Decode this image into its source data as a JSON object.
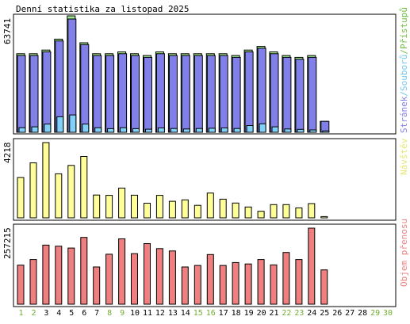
{
  "title": "Denní statistika za listopad 2025",
  "colors": {
    "pages_fill": "#8080e8",
    "files_fill": "#80d0f8",
    "hits_fill": "#a0e890",
    "visits_fill": "#ffff99",
    "traffic_fill": "#f08080",
    "weekday_label": "#000000",
    "weekend_label": "#70b030",
    "legend_hits": "#70c040",
    "legend_files": "#70c8f0",
    "legend_pages": "#8080e8",
    "legend_visits": "#e8e870",
    "legend_traffic": "#f08080"
  },
  "chart_data": [
    {
      "type": "bar",
      "panel": "hits-files-pages",
      "title": "Denní statistika za listopad 2025",
      "ylabel_max": "63741",
      "ylim": [
        0,
        63741
      ],
      "legend": [
        {
          "text": "Přístupů",
          "color_key": "legend_hits"
        },
        {
          "text": "/",
          "color_key": "legend_hits"
        },
        {
          "text": "Souborů",
          "color_key": "legend_files"
        },
        {
          "text": "/",
          "color_key": "legend_files"
        },
        {
          "text": "Stránek",
          "color_key": "legend_pages"
        }
      ],
      "categories": [
        "1",
        "2",
        "3",
        "4",
        "5",
        "6",
        "7",
        "8",
        "9",
        "10",
        "11",
        "12",
        "13",
        "14",
        "15",
        "16",
        "17",
        "18",
        "19",
        "20",
        "21",
        "22",
        "23",
        "24",
        "25",
        "26",
        "27",
        "28",
        "29",
        "30"
      ],
      "series": [
        {
          "name": "Přístupů",
          "color_key": "hits_fill",
          "values": [
            43000,
            43000,
            45000,
            51000,
            63741,
            49000,
            43000,
            43000,
            44000,
            43000,
            42000,
            44000,
            43000,
            43000,
            43000,
            43000,
            43000,
            42000,
            45000,
            47000,
            44000,
            42000,
            41000,
            42000,
            6000,
            0,
            0,
            0,
            0,
            0
          ]
        },
        {
          "name": "Souborů",
          "color_key": "files_fill",
          "values": [
            2500,
            3000,
            4500,
            8500,
            9500,
            4500,
            2500,
            2000,
            2500,
            2000,
            1700,
            2400,
            2100,
            1800,
            2100,
            2200,
            2400,
            2100,
            3700,
            4700,
            3000,
            1800,
            1600,
            1300,
            800,
            0,
            0,
            0,
            0,
            0
          ]
        },
        {
          "name": "Stránek",
          "color_key": "pages_fill",
          "values": [
            42000,
            42000,
            44000,
            50000,
            62000,
            48000,
            42000,
            42000,
            43000,
            42000,
            41000,
            43000,
            42000,
            42000,
            42000,
            42000,
            42000,
            41000,
            44000,
            46000,
            43000,
            41000,
            40000,
            41000,
            6000,
            0,
            0,
            0,
            0,
            0
          ]
        }
      ]
    },
    {
      "type": "bar",
      "panel": "visits",
      "ylabel_max": "4218",
      "ylim": [
        0,
        4218
      ],
      "legend": [
        {
          "text": "Návštěv",
          "color_key": "legend_visits"
        }
      ],
      "categories": [
        "1",
        "2",
        "3",
        "4",
        "5",
        "6",
        "7",
        "8",
        "9",
        "10",
        "11",
        "12",
        "13",
        "14",
        "15",
        "16",
        "17",
        "18",
        "19",
        "20",
        "21",
        "22",
        "23",
        "24",
        "25",
        "26",
        "27",
        "28",
        "29",
        "30"
      ],
      "series": [
        {
          "name": "Návštěv",
          "color_key": "visits_fill",
          "values": [
            2260,
            3080,
            4218,
            2470,
            2940,
            3440,
            1280,
            1260,
            1670,
            1270,
            820,
            1260,
            930,
            1010,
            700,
            1390,
            1050,
            830,
            610,
            370,
            740,
            740,
            560,
            800,
            70,
            0,
            0,
            0,
            0,
            0
          ]
        }
      ]
    },
    {
      "type": "bar",
      "panel": "traffic",
      "ylabel_max": "257215",
      "ylim": [
        0,
        257215
      ],
      "legend": [
        {
          "text": "Objem přenosu",
          "color_key": "legend_traffic"
        }
      ],
      "categories": [
        "1",
        "2",
        "3",
        "4",
        "5",
        "6",
        "7",
        "8",
        "9",
        "10",
        "11",
        "12",
        "13",
        "14",
        "15",
        "16",
        "17",
        "18",
        "19",
        "20",
        "21",
        "22",
        "23",
        "24",
        "25",
        "26",
        "27",
        "28",
        "29",
        "30"
      ],
      "series": [
        {
          "name": "Objem přenosu",
          "color_key": "traffic_fill",
          "values": [
            132000,
            151000,
            200000,
            196000,
            190000,
            226000,
            126000,
            169000,
            221000,
            171000,
            205000,
            188000,
            180000,
            126000,
            131000,
            168000,
            131000,
            141000,
            136000,
            151000,
            133000,
            175000,
            151000,
            257215,
            116000,
            0,
            0,
            0,
            0,
            0
          ]
        }
      ]
    }
  ],
  "x_axis": {
    "weekend_days": [
      "1",
      "2",
      "8",
      "9",
      "15",
      "16",
      "22",
      "23",
      "29",
      "30"
    ]
  }
}
